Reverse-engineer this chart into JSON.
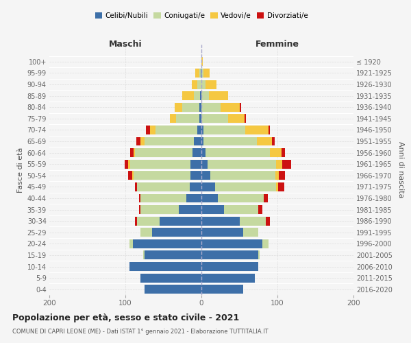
{
  "age_groups": [
    "0-4",
    "5-9",
    "10-14",
    "15-19",
    "20-24",
    "25-29",
    "30-34",
    "35-39",
    "40-44",
    "45-49",
    "50-54",
    "55-59",
    "60-64",
    "65-69",
    "70-74",
    "75-79",
    "80-84",
    "85-89",
    "90-94",
    "95-99",
    "100+"
  ],
  "birth_years": [
    "2016-2020",
    "2011-2015",
    "2006-2010",
    "2001-2005",
    "1996-2000",
    "1991-1995",
    "1986-1990",
    "1981-1985",
    "1976-1980",
    "1971-1975",
    "1966-1970",
    "1961-1965",
    "1956-1960",
    "1951-1955",
    "1946-1950",
    "1941-1945",
    "1936-1940",
    "1931-1935",
    "1926-1930",
    "1921-1925",
    "≤ 1920"
  ],
  "male_celibi": [
    75,
    80,
    95,
    75,
    90,
    65,
    55,
    30,
    20,
    15,
    14,
    14,
    12,
    10,
    5,
    3,
    3,
    2,
    0,
    1,
    0
  ],
  "male_coniugati": [
    0,
    0,
    0,
    2,
    5,
    15,
    30,
    50,
    60,
    70,
    75,
    80,
    75,
    65,
    55,
    30,
    22,
    8,
    5,
    2,
    0
  ],
  "male_vedovi": [
    0,
    0,
    0,
    0,
    0,
    0,
    0,
    0,
    0,
    0,
    2,
    2,
    2,
    5,
    8,
    8,
    10,
    15,
    8,
    5,
    0
  ],
  "male_divorziati": [
    0,
    0,
    0,
    0,
    0,
    0,
    2,
    2,
    2,
    2,
    5,
    5,
    5,
    6,
    5,
    0,
    0,
    0,
    0,
    0,
    0
  ],
  "female_celibi": [
    55,
    70,
    75,
    75,
    80,
    55,
    50,
    30,
    22,
    18,
    12,
    8,
    5,
    3,
    3,
    0,
    0,
    0,
    0,
    0,
    0
  ],
  "female_coniugati": [
    0,
    0,
    0,
    2,
    8,
    20,
    35,
    45,
    60,
    80,
    85,
    90,
    85,
    70,
    55,
    35,
    25,
    10,
    5,
    3,
    0
  ],
  "female_vedovi": [
    0,
    0,
    0,
    0,
    0,
    0,
    0,
    0,
    0,
    3,
    5,
    8,
    15,
    20,
    30,
    22,
    25,
    25,
    15,
    8,
    2
  ],
  "female_divorziati": [
    0,
    0,
    0,
    0,
    0,
    0,
    5,
    5,
    5,
    8,
    8,
    12,
    5,
    3,
    2,
    2,
    2,
    0,
    0,
    0,
    0
  ],
  "colors": {
    "celibi": "#3d6fa8",
    "coniugati": "#c5d9a0",
    "vedovi": "#f5c842",
    "divorziati": "#cc1111"
  },
  "title": "Popolazione per età, sesso e stato civile - 2021",
  "subtitle": "COMUNE DI CAPRI LEONE (ME) - Dati ISTAT 1° gennaio 2021 - Elaborazione TUTTITALIA.IT",
  "xlabel_left": "Maschi",
  "xlabel_right": "Femmine",
  "ylabel_left": "Fasce di età",
  "ylabel_right": "Anni di nascita",
  "xlim": 200,
  "background_color": "#f5f5f5"
}
